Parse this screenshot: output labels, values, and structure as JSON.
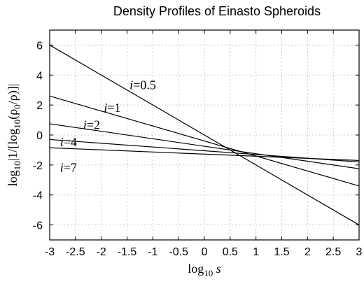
{
  "chart_data": {
    "type": "line",
    "title": "Density Profiles of Einasto Spheroids",
    "xlabel": {
      "main": "log",
      "sub": "10",
      "var": " s"
    },
    "ylabel": {
      "p1": "log",
      "s1": "10",
      "p2": "|1/[log",
      "s2": "10",
      "p3": "(ρ",
      "s3": "0",
      "p4": "/ρ)]|"
    },
    "xlim": [
      -3,
      3
    ],
    "ylim": [
      -7,
      7
    ],
    "xticks": [
      -3,
      -2.5,
      -2,
      -1.5,
      -1,
      -0.5,
      0,
      0.5,
      1,
      1.5,
      2,
      2.5,
      3
    ],
    "xtick_labels": [
      "-3",
      "-2.5",
      "-2",
      "-1.5",
      "-1",
      "-0.5",
      "0",
      "0.5",
      "1",
      "1.5",
      "2",
      "2.5",
      "3"
    ],
    "yticks": [
      -6,
      -4,
      -2,
      0,
      2,
      4,
      6
    ],
    "ytick_labels": [
      "-6",
      "-4",
      "-2",
      "0",
      "2",
      "4",
      "6"
    ],
    "grid": true,
    "series": [
      {
        "name": "i=0.5",
        "x": [
          -3,
          3
        ],
        "y": [
          6.0,
          -6.0
        ],
        "label_var": "i",
        "label_val": "=0.5",
        "label_at": [
          -1.45,
          3.05
        ]
      },
      {
        "name": "i=1",
        "x": [
          -3,
          3
        ],
        "y": [
          2.6,
          -3.4
        ],
        "label_var": "i",
        "label_val": "=1",
        "label_at": [
          -1.95,
          1.55
        ]
      },
      {
        "name": "i=2",
        "x": [
          -3,
          3
        ],
        "y": [
          0.75,
          -2.25
        ],
        "label_var": "i",
        "label_val": "=2",
        "label_at": [
          -2.35,
          0.4
        ]
      },
      {
        "name": "i=4",
        "x": [
          -3,
          3
        ],
        "y": [
          -0.3,
          -1.8
        ],
        "label_var": "i",
        "label_val": "=4",
        "label_at": [
          -2.8,
          -0.75
        ]
      },
      {
        "name": "i=7",
        "x": [
          -3,
          3
        ],
        "y": [
          -0.85,
          -1.7
        ],
        "label_var": "i",
        "label_val": "=7",
        "label_at": [
          -2.8,
          -2.45
        ]
      }
    ]
  }
}
